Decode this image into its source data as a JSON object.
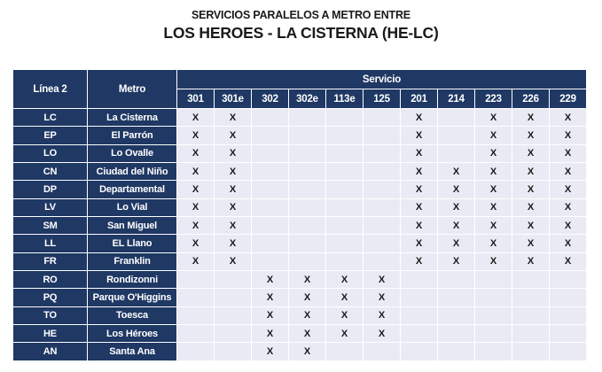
{
  "page": {
    "title_line1": "SERVICIOS PARALELOS A METRO ENTRE",
    "title_line2": "LOS HEROES - LA CISTERNA (HE-LC)"
  },
  "table": {
    "headers": {
      "linea": "Línea 2",
      "metro": "Metro",
      "servicio": "Servicio"
    },
    "services": [
      "301",
      "301e",
      "302",
      "302e",
      "113e",
      "125",
      "201",
      "214",
      "223",
      "226",
      "229"
    ],
    "mark_symbol": "X",
    "rows": [
      {
        "code": "LC",
        "station": "La Cisterna",
        "marks": [
          "X",
          "X",
          "",
          "",
          "",
          "",
          "X",
          "",
          "X",
          "X",
          "X"
        ]
      },
      {
        "code": "EP",
        "station": "El Parrón",
        "marks": [
          "X",
          "X",
          "",
          "",
          "",
          "",
          "X",
          "",
          "X",
          "X",
          "X"
        ]
      },
      {
        "code": "LO",
        "station": "Lo Ovalle",
        "marks": [
          "X",
          "X",
          "",
          "",
          "",
          "",
          "X",
          "",
          "X",
          "X",
          "X"
        ]
      },
      {
        "code": "CN",
        "station": "Ciudad del Niño",
        "marks": [
          "X",
          "X",
          "",
          "",
          "",
          "",
          "X",
          "X",
          "X",
          "X",
          "X"
        ]
      },
      {
        "code": "DP",
        "station": "Departamental",
        "marks": [
          "X",
          "X",
          "",
          "",
          "",
          "",
          "X",
          "X",
          "X",
          "X",
          "X"
        ]
      },
      {
        "code": "LV",
        "station": "Lo Vial",
        "marks": [
          "X",
          "X",
          "",
          "",
          "",
          "",
          "X",
          "X",
          "X",
          "X",
          "X"
        ]
      },
      {
        "code": "SM",
        "station": "San Miguel",
        "marks": [
          "X",
          "X",
          "",
          "",
          "",
          "",
          "X",
          "X",
          "X",
          "X",
          "X"
        ]
      },
      {
        "code": "LL",
        "station": "EL Llano",
        "marks": [
          "X",
          "X",
          "",
          "",
          "",
          "",
          "X",
          "X",
          "X",
          "X",
          "X"
        ]
      },
      {
        "code": "FR",
        "station": "Franklin",
        "marks": [
          "X",
          "X",
          "",
          "",
          "",
          "",
          "X",
          "X",
          "X",
          "X",
          "X"
        ]
      },
      {
        "code": "RO",
        "station": "Rondizonni",
        "marks": [
          "",
          "",
          "X",
          "X",
          "X",
          "X",
          "",
          "",
          "",
          "",
          ""
        ]
      },
      {
        "code": "PQ",
        "station": "Parque O'Higgins",
        "marks": [
          "",
          "",
          "X",
          "X",
          "X",
          "X",
          "",
          "",
          "",
          "",
          ""
        ]
      },
      {
        "code": "TO",
        "station": "Toesca",
        "marks": [
          "",
          "",
          "X",
          "X",
          "X",
          "X",
          "",
          "",
          "",
          "",
          ""
        ]
      },
      {
        "code": "HE",
        "station": "Los Héroes",
        "marks": [
          "",
          "",
          "X",
          "X",
          "X",
          "X",
          "",
          "",
          "",
          "",
          ""
        ]
      },
      {
        "code": "AN",
        "station": "Santa Ana",
        "marks": [
          "",
          "",
          "X",
          "X",
          "",
          "",
          "",
          "",
          "",
          "",
          ""
        ]
      }
    ]
  },
  "colors": {
    "navy": "#1F3864",
    "cell_bg": "#E9EAF4",
    "text_dark": "#1A1A1A",
    "gridline": "#FFFFFF"
  }
}
